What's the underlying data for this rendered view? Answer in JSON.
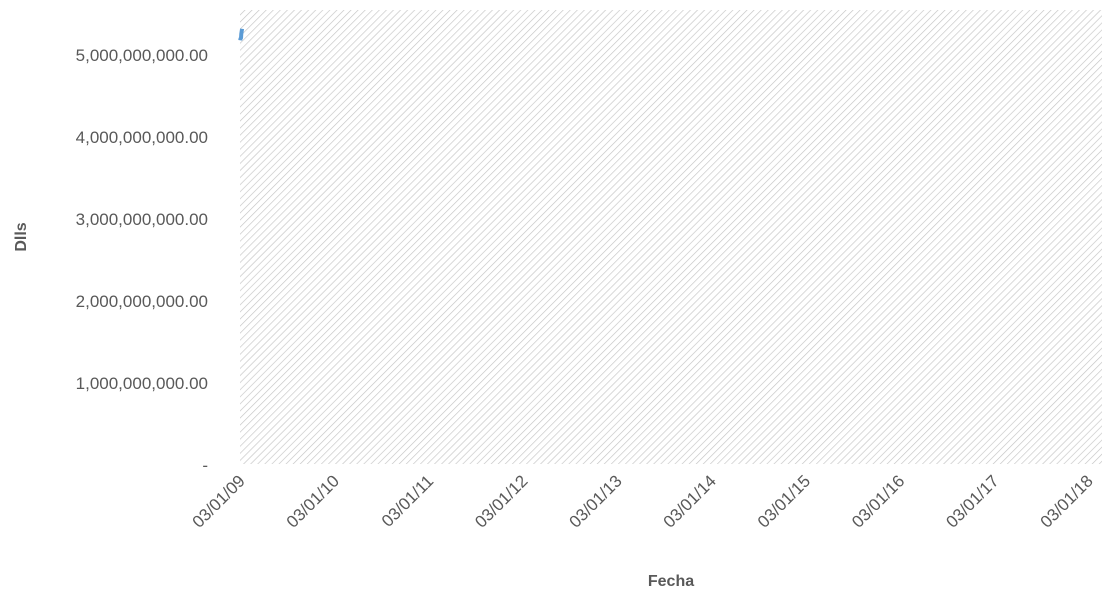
{
  "chart_data": {
    "type": "line",
    "title": "",
    "xlabel": "Fecha",
    "ylabel": "Dlls",
    "x_tick_labels": [
      "03/01/09",
      "03/01/10",
      "03/01/11",
      "03/01/12",
      "03/01/13",
      "03/01/14",
      "03/01/15",
      "03/01/16",
      "03/01/17",
      "03/01/18"
    ],
    "y_tick_labels": [
      "-",
      "1,000,000,000.00",
      "2,000,000,000.00",
      "3,000,000,000.00",
      "4,000,000,000.00",
      "5,000,000,000.00"
    ],
    "y_ticks": [
      0,
      1000000000,
      2000000000,
      3000000000,
      4000000000,
      5000000000
    ],
    "xlim": [
      "2009-03-01",
      "2018-03-01"
    ],
    "ylim": [
      0,
      5550000000
    ],
    "grid": false,
    "plot_background": "diagonal hatch",
    "series": [
      {
        "color": "#5b9bd5",
        "points": [
          {
            "x": "2009-03-02",
            "y": 5180000000
          },
          {
            "x": "2009-03-03",
            "y": 5200000000
          },
          {
            "x": "2009-03-05",
            "y": 5210000000
          },
          {
            "x": "2009-03-06",
            "y": 5260000000
          },
          {
            "x": "2009-03-09",
            "y": 5320000000
          }
        ]
      }
    ]
  }
}
